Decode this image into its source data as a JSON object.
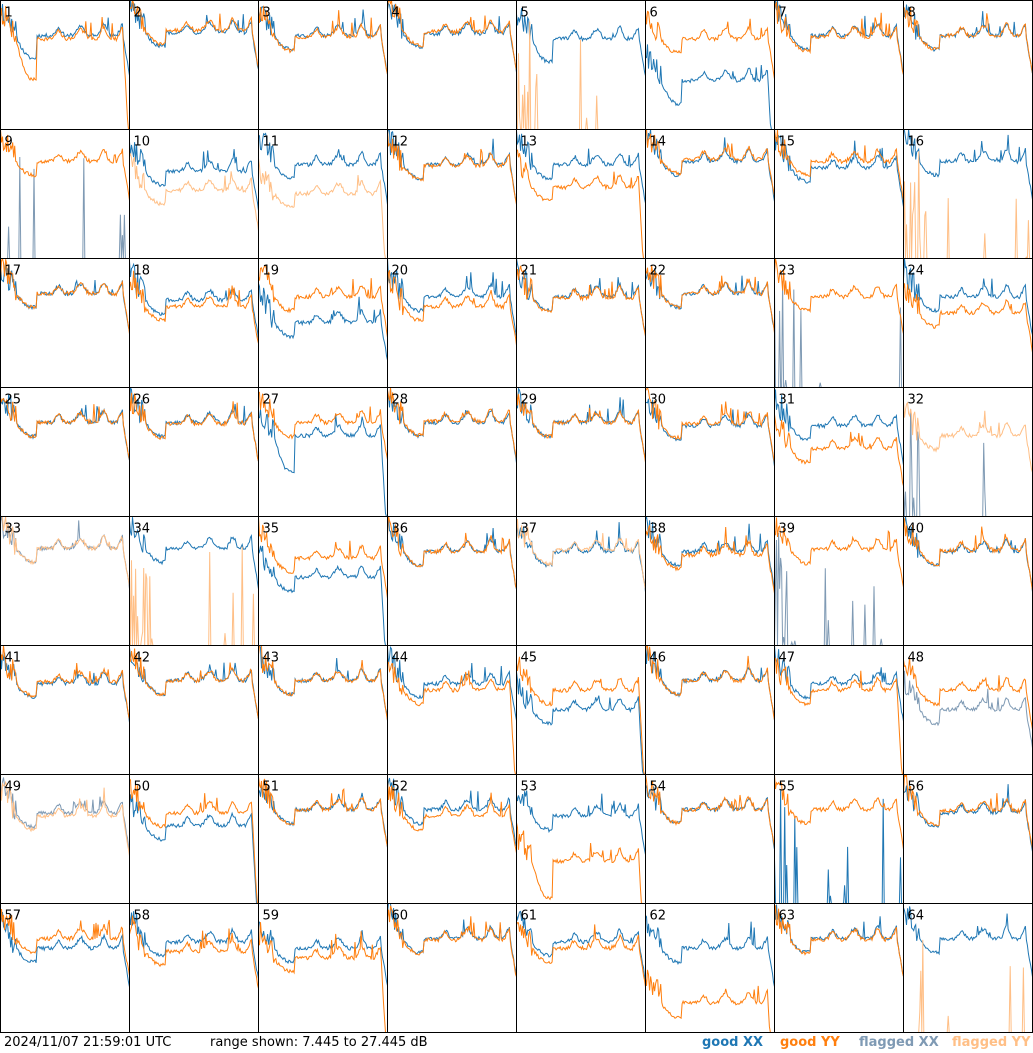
{
  "footer": {
    "timestamp": "2024/11/07 21:59:01 UTC",
    "range_text": "range shown: 7.445 to 27.445 dB"
  },
  "legend": [
    {
      "key": "good_xx",
      "label": "good XX",
      "color": "#1f77b4"
    },
    {
      "key": "good_yy",
      "label": "good YY",
      "color": "#ff7f0e"
    },
    {
      "key": "flagged_xx",
      "label": "flagged XX",
      "color": "#7f9ab4"
    },
    {
      "key": "flagged_yy",
      "label": "flagged YY",
      "color": "#ffbf86"
    }
  ],
  "chart_data": {
    "type": "line",
    "layout": "small-multiples 8x8",
    "ylim": [
      7.445,
      27.445
    ],
    "yunit": "dB",
    "grid": false,
    "legend_position": "bottom-right",
    "series_styles": {
      "good_xx": "#1f77b4",
      "good_yy": "#ff7f0e",
      "flagged_xx": "#7f9ab4",
      "flagged_yy": "#ffbf86"
    },
    "panels": [
      {
        "label": "1",
        "xx": "good",
        "yy": "good",
        "xx_base": 22.0,
        "yy_base": 21.5,
        "xx_dip": 5.0,
        "yy_dip": 9.0,
        "yy_roll": true
      },
      {
        "label": "2",
        "xx": "good",
        "yy": "good",
        "xx_base": 22.5,
        "yy_base": 22.8
      },
      {
        "label": "3",
        "xx": "good",
        "yy": "good",
        "xx_base": 22.0,
        "yy_base": 21.8
      },
      {
        "label": "4",
        "xx": "good",
        "yy": "good",
        "xx_base": 22.3,
        "yy_base": 22.6
      },
      {
        "label": "5",
        "xx": "good",
        "yy": "flagged_spikes",
        "xx_base": 21.5,
        "xx_dip": 5.0
      },
      {
        "label": "6",
        "xx": "good",
        "yy": "good",
        "xx_base": 15.0,
        "yy_base": 21.5,
        "xx_dip": 5.0,
        "xx_roll": true
      },
      {
        "label": "7",
        "xx": "good",
        "yy": "good",
        "xx_base": 22.0,
        "yy_base": 21.8
      },
      {
        "label": "8",
        "xx": "good",
        "yy": "good",
        "xx_base": 22.0,
        "yy_base": 22.0
      },
      {
        "label": "9",
        "xx": "flagged_spikes",
        "yy": "good",
        "yy_base": 22.5
      },
      {
        "label": "10",
        "xx": "good",
        "yy": "flagged",
        "xx_base": 21.0,
        "yy_base": 18.0
      },
      {
        "label": "11",
        "xx": "good",
        "yy": "flagged",
        "xx_base": 22.0,
        "yy_base": 17.5,
        "yy_roll": true
      },
      {
        "label": "12",
        "xx": "good",
        "yy": "good",
        "xx_base": 22.0,
        "yy_base": 21.8
      },
      {
        "label": "13",
        "xx": "good",
        "yy": "good",
        "xx_base": 22.0,
        "yy_base": 18.5,
        "yy_roll": true
      },
      {
        "label": "14",
        "xx": "good",
        "yy": "good",
        "xx_base": 22.5,
        "yy_base": 22.8
      },
      {
        "label": "15",
        "xx": "good",
        "yy": "good",
        "xx_base": 21.5,
        "yy_base": 22.5
      },
      {
        "label": "16",
        "xx": "good",
        "yy": "flagged_spikes",
        "xx_base": 22.5
      },
      {
        "label": "17",
        "xx": "good",
        "yy": "good",
        "xx_base": 22.0,
        "yy_base": 22.0
      },
      {
        "label": "18",
        "xx": "good",
        "yy": "good",
        "xx_base": 21.0,
        "yy_base": 20.0
      },
      {
        "label": "19",
        "xx": "good",
        "yy": "good",
        "xx_base": 17.5,
        "yy_base": 21.5
      },
      {
        "label": "20",
        "xx": "good",
        "yy": "good",
        "xx_base": 21.5,
        "yy_base": 20.0
      },
      {
        "label": "21",
        "xx": "good",
        "yy": "good",
        "xx_base": 21.5,
        "yy_base": 21.3
      },
      {
        "label": "22",
        "xx": "good",
        "yy": "good",
        "xx_base": 22.0,
        "yy_base": 22.0
      },
      {
        "label": "23",
        "xx": "flagged_spikes",
        "yy": "good",
        "yy_base": 21.5
      },
      {
        "label": "24",
        "xx": "good",
        "yy": "good",
        "xx_base": 21.5,
        "yy_base": 19.0
      },
      {
        "label": "25",
        "xx": "good",
        "yy": "good",
        "xx_base": 22.0,
        "yy_base": 22.0
      },
      {
        "label": "26",
        "xx": "good",
        "yy": "good",
        "xx_base": 22.0,
        "yy_base": 21.8
      },
      {
        "label": "27",
        "xx": "good",
        "yy": "good",
        "xx_base": 20.0,
        "yy_base": 22.0,
        "xx_dip": 8.0,
        "xx_roll": true
      },
      {
        "label": "28",
        "xx": "good",
        "yy": "good",
        "xx_base": 22.0,
        "yy_base": 22.2
      },
      {
        "label": "29",
        "xx": "good",
        "yy": "good",
        "xx_base": 22.0,
        "yy_base": 22.0
      },
      {
        "label": "30",
        "xx": "good",
        "yy": "good",
        "xx_base": 21.5,
        "yy_base": 21.8
      },
      {
        "label": "31",
        "xx": "good",
        "yy": "good",
        "xx_base": 21.5,
        "yy_base": 18.0
      },
      {
        "label": "32",
        "xx": "flagged_spikes",
        "yy": "flagged",
        "yy_base": 20.0
      },
      {
        "label": "33",
        "xx": "flagged",
        "yy": "flagged",
        "xx_base": 22.5,
        "yy_base": 22.5
      },
      {
        "label": "34",
        "xx": "good",
        "yy": "flagged_spikes",
        "xx_base": 22.5
      },
      {
        "label": "35",
        "xx": "good",
        "yy": "good",
        "xx_base": 18.0,
        "yy_base": 21.0,
        "xx_roll": true
      },
      {
        "label": "36",
        "xx": "good",
        "yy": "good",
        "xx_base": 22.0,
        "yy_base": 22.0
      },
      {
        "label": "37",
        "xx": "good",
        "yy": "flagged",
        "xx_base": 22.0,
        "yy_base": 22.2
      },
      {
        "label": "38",
        "xx": "good",
        "yy": "good",
        "xx_base": 22.0,
        "yy_base": 21.5
      },
      {
        "label": "39",
        "xx": "flagged_spikes",
        "yy": "good",
        "yy_base": 22.3
      },
      {
        "label": "40",
        "xx": "good",
        "yy": "good",
        "xx_base": 22.0,
        "yy_base": 22.2
      },
      {
        "label": "41",
        "xx": "good",
        "yy": "good",
        "xx_base": 21.5,
        "yy_base": 21.8
      },
      {
        "label": "42",
        "xx": "good",
        "yy": "good",
        "xx_base": 22.0,
        "yy_base": 22.0
      },
      {
        "label": "43",
        "xx": "good",
        "yy": "good",
        "xx_base": 22.0,
        "yy_base": 22.0
      },
      {
        "label": "44",
        "xx": "good",
        "yy": "good",
        "xx_base": 21.5,
        "yy_base": 20.5,
        "yy_roll": true
      },
      {
        "label": "45",
        "xx": "good",
        "yy": "good",
        "xx_base": 17.5,
        "yy_base": 20.5,
        "xx_roll": true,
        "yy_roll": true
      },
      {
        "label": "46",
        "xx": "good",
        "yy": "good",
        "xx_base": 22.0,
        "yy_base": 22.0
      },
      {
        "label": "47",
        "xx": "good",
        "yy": "good",
        "xx_base": 21.5,
        "yy_base": 20.5,
        "yy_roll": true
      },
      {
        "label": "48",
        "xx": "flagged",
        "yy": "good",
        "xx_base": 17.5,
        "yy_base": 20.5
      },
      {
        "label": "49",
        "xx": "flagged",
        "yy": "flagged",
        "xx_base": 21.5,
        "yy_base": 21.0
      },
      {
        "label": "50",
        "xx": "good",
        "yy": "good",
        "xx_base": 19.5,
        "yy_base": 21.5,
        "xx_roll": true,
        "yy_roll": true
      },
      {
        "label": "51",
        "xx": "good",
        "yy": "good",
        "xx_base": 22.0,
        "yy_base": 22.0
      },
      {
        "label": "52",
        "xx": "good",
        "yy": "good",
        "xx_base": 22.0,
        "yy_base": 21.0
      },
      {
        "label": "53",
        "xx": "good",
        "yy": "good",
        "xx_base": 21.0,
        "yy_base": 14.0,
        "yy_dip": 8.0,
        "yy_roll": true
      },
      {
        "label": "54",
        "xx": "good",
        "yy": "good",
        "xx_base": 22.0,
        "yy_base": 22.0
      },
      {
        "label": "55",
        "xx": "good_spikes",
        "yy": "good",
        "yy_base": 22.0
      },
      {
        "label": "56",
        "xx": "good",
        "yy": "good",
        "xx_base": 21.5,
        "yy_base": 21.8
      },
      {
        "label": "57",
        "xx": "good",
        "yy": "good",
        "xx_base": 20.5,
        "yy_base": 22.0
      },
      {
        "label": "58",
        "xx": "good",
        "yy": "good",
        "xx_base": 21.5,
        "yy_base": 20.0
      },
      {
        "label": "59",
        "xx": "good",
        "yy": "good",
        "xx_base": 20.5,
        "yy_base": 19.0,
        "yy_roll": true
      },
      {
        "label": "60",
        "xx": "good",
        "yy": "good",
        "xx_base": 22.0,
        "yy_base": 21.8
      },
      {
        "label": "61",
        "xx": "good",
        "yy": "good",
        "xx_base": 21.5,
        "yy_base": 20.5
      },
      {
        "label": "62",
        "xx": "good",
        "yy": "good",
        "xx_base": 20.5,
        "yy_base": 12.0,
        "yy_roll": true
      },
      {
        "label": "63",
        "xx": "good",
        "yy": "good",
        "xx_base": 22.0,
        "yy_base": 21.8
      },
      {
        "label": "64",
        "xx": "good",
        "yy": "flagged_spikes",
        "xx_base": 22.0
      }
    ]
  }
}
